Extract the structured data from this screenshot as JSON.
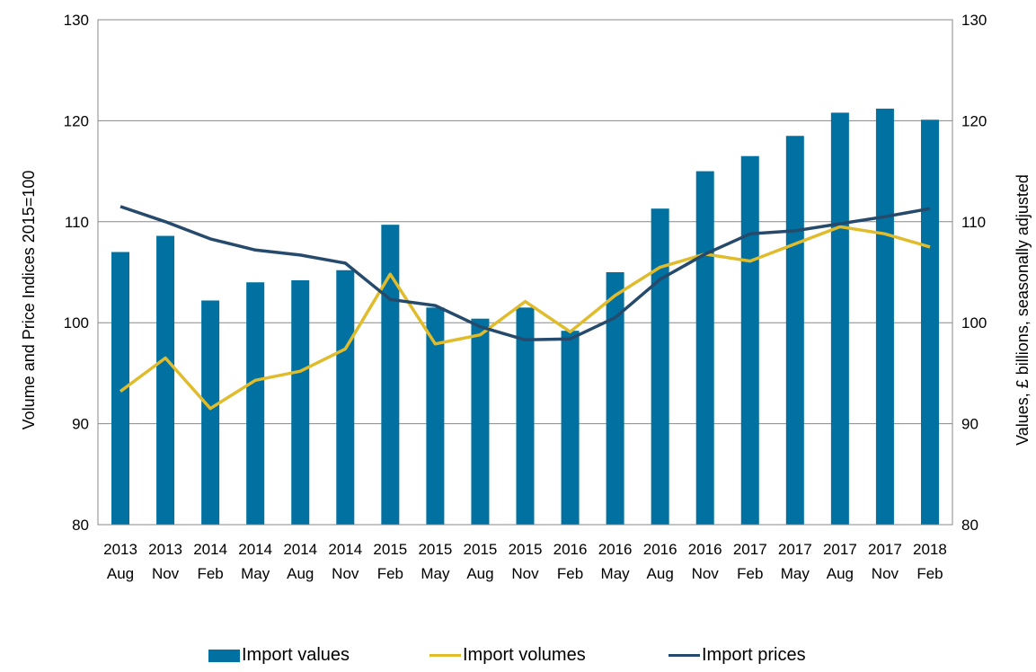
{
  "chart_data": {
    "type": "bar+line",
    "categories": [
      [
        "2013",
        "Aug"
      ],
      [
        "2013",
        "Nov"
      ],
      [
        "2014",
        "Feb"
      ],
      [
        "2014",
        "May"
      ],
      [
        "2014",
        "Aug"
      ],
      [
        "2014",
        "Nov"
      ],
      [
        "2015",
        "Feb"
      ],
      [
        "2015",
        "May"
      ],
      [
        "2015",
        "Aug"
      ],
      [
        "2015",
        "Nov"
      ],
      [
        "2016",
        "Feb"
      ],
      [
        "2016",
        "May"
      ],
      [
        "2016",
        "Aug"
      ],
      [
        "2016",
        "Nov"
      ],
      [
        "2017",
        "Feb"
      ],
      [
        "2017",
        "May"
      ],
      [
        "2017",
        "Aug"
      ],
      [
        "2017",
        "Nov"
      ],
      [
        "2018",
        "Feb"
      ]
    ],
    "ylabel_left": "Volume and Price Indices 2015=100",
    "ylabel_right": "Values, £ billions, seasonally adjusted",
    "ylim_left": [
      80,
      130
    ],
    "ylim_right": [
      80,
      130
    ],
    "yticks": [
      80,
      90,
      100,
      110,
      120,
      130
    ],
    "grid": true,
    "legend_position": "bottom",
    "series": [
      {
        "name": "Import values",
        "type": "bar",
        "axis": "right",
        "color": "#0071a0",
        "values": [
          107.0,
          108.6,
          102.2,
          104.0,
          104.2,
          105.2,
          109.7,
          101.5,
          100.4,
          101.5,
          99.2,
          105.0,
          111.3,
          115.0,
          116.5,
          118.5,
          120.8,
          121.2,
          120.1
        ]
      },
      {
        "name": "Import volumes",
        "type": "line",
        "axis": "left",
        "color": "#e0bc2d",
        "values": [
          93.2,
          96.5,
          91.5,
          94.3,
          95.2,
          97.4,
          104.8,
          97.9,
          98.8,
          102.1,
          99.1,
          102.7,
          105.5,
          106.8,
          106.1,
          107.8,
          109.5,
          108.8,
          107.5
        ]
      },
      {
        "name": "Import prices",
        "type": "line",
        "axis": "left",
        "color": "#264a6c",
        "values": [
          111.5,
          110.0,
          108.3,
          107.2,
          106.7,
          105.9,
          102.3,
          101.7,
          99.6,
          98.3,
          98.4,
          100.5,
          104.3,
          106.8,
          108.8,
          109.1,
          109.8,
          110.5,
          111.3
        ]
      }
    ]
  }
}
